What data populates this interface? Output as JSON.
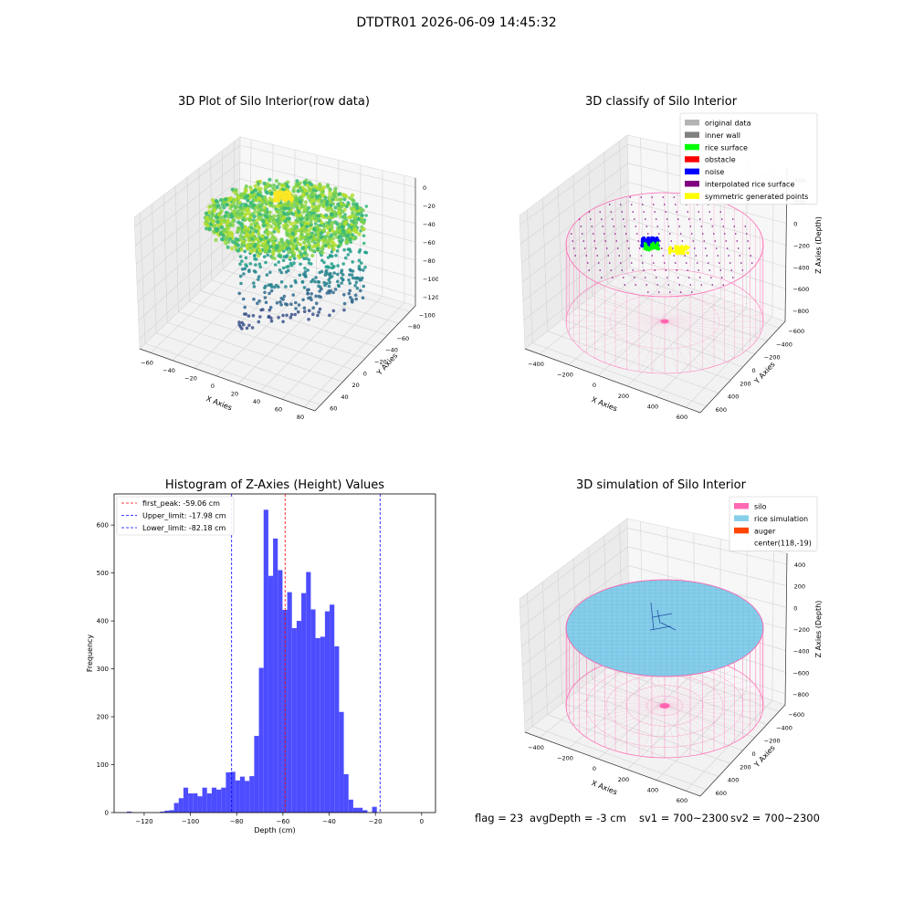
{
  "figure_title": "DTDTR01 2026-06-09 14:45:32",
  "panels": {
    "raw": {
      "title": "3D Plot of Silo Interior(row data)",
      "xlabel": "X Axies",
      "ylabel": "Y Axies",
      "zlabel": "Z Axies (Depth)",
      "xticks": [
        "−60",
        "−40",
        "−20",
        "0",
        "20",
        "40",
        "60",
        "80"
      ],
      "yticks": [
        "−100",
        "−80",
        "−60",
        "−40",
        "−20",
        "0",
        "20",
        "40",
        "60"
      ],
      "zticks": [
        "0",
        "−20",
        "−40",
        "−60",
        "−80",
        "−100",
        "−120"
      ]
    },
    "classify": {
      "title": "3D classify of Silo Interior",
      "xlabel": "X Axies",
      "ylabel": "Y Axies",
      "zlabel": "Z Axies (Depth)",
      "xticks": [
        "−400",
        "−200",
        "0",
        "200",
        "400",
        "600"
      ],
      "yticks": [
        "−600",
        "−400",
        "−200",
        "0",
        "200",
        "400",
        "600"
      ],
      "zticks": [
        "400",
        "200",
        "0",
        "−200",
        "−400",
        "−600",
        "−800"
      ],
      "legend": [
        {
          "label": "original data",
          "color": "#b3b3b3"
        },
        {
          "label": "inner wall",
          "color": "#808080"
        },
        {
          "label": "rice surface",
          "color": "#00ff00"
        },
        {
          "label": "obstacle",
          "color": "#ff0000"
        },
        {
          "label": "noise",
          "color": "#0000ff"
        },
        {
          "label": "interpolated rice surface",
          "color": "#800080"
        },
        {
          "label": "symmetric generated points",
          "color": "#ffff00"
        }
      ]
    },
    "simulation": {
      "title": "3D simulation of Silo Interior",
      "xlabel": "X Axies",
      "ylabel": "Y Axies",
      "zlabel": "Z Axies (Depth)",
      "xticks": [
        "−400",
        "−200",
        "0",
        "200",
        "400",
        "600"
      ],
      "yticks": [
        "−600",
        "−400",
        "−200",
        "0",
        "200",
        "400",
        "600"
      ],
      "zticks": [
        "400",
        "200",
        "0",
        "−200",
        "−400",
        "−600",
        "−800"
      ],
      "legend": [
        {
          "label": "silo",
          "color": "#ff69b4"
        },
        {
          "label": "rice simulation",
          "color": "#87ceeb"
        },
        {
          "label": "auger",
          "color": "#ff4500"
        },
        {
          "label": "center(118,-19)",
          "color": ""
        }
      ]
    }
  },
  "footer": {
    "flag": "flag = 23",
    "avg_depth": "avgDepth = -3 cm",
    "sv1": "sv1 = 700~2300",
    "sv2": "sv2 = 700~2300"
  },
  "chart_data": [
    {
      "type": "histogram",
      "title": "Histogram of Z-Axies (Height) Values",
      "xlabel": "Depth (cm)",
      "ylabel": "Frequency",
      "xlim": [
        -133,
        6
      ],
      "ylim": [
        0,
        665
      ],
      "xticks": [
        -120,
        -100,
        -80,
        -60,
        -40,
        -20,
        0
      ],
      "yticks": [
        0,
        100,
        200,
        300,
        400,
        500,
        600
      ],
      "bar_color": "#4d4dff",
      "bin_edges_start": -127.5,
      "bin_width": 2.04,
      "counts": [
        2,
        0,
        0,
        0,
        0,
        0,
        0,
        2,
        4,
        5,
        20,
        30,
        52,
        40,
        40,
        34,
        52,
        40,
        52,
        48,
        52,
        84,
        85,
        67,
        75,
        66,
        76,
        160,
        302,
        632,
        494,
        572,
        506,
        423,
        460,
        385,
        400,
        458,
        502,
        424,
        364,
        367,
        420,
        434,
        347,
        210,
        80,
        27,
        10,
        10,
        5,
        0,
        12
      ],
      "lines": [
        {
          "label": "first_peak: -59.06 cm",
          "x": -59.06,
          "color": "#ff0000"
        },
        {
          "label": "Upper_limit: -17.98 cm",
          "x": -17.98,
          "color": "#0000ff"
        },
        {
          "label": "Lower_limit: -82.18 cm",
          "x": -82.18,
          "color": "#0000ff"
        }
      ]
    }
  ]
}
